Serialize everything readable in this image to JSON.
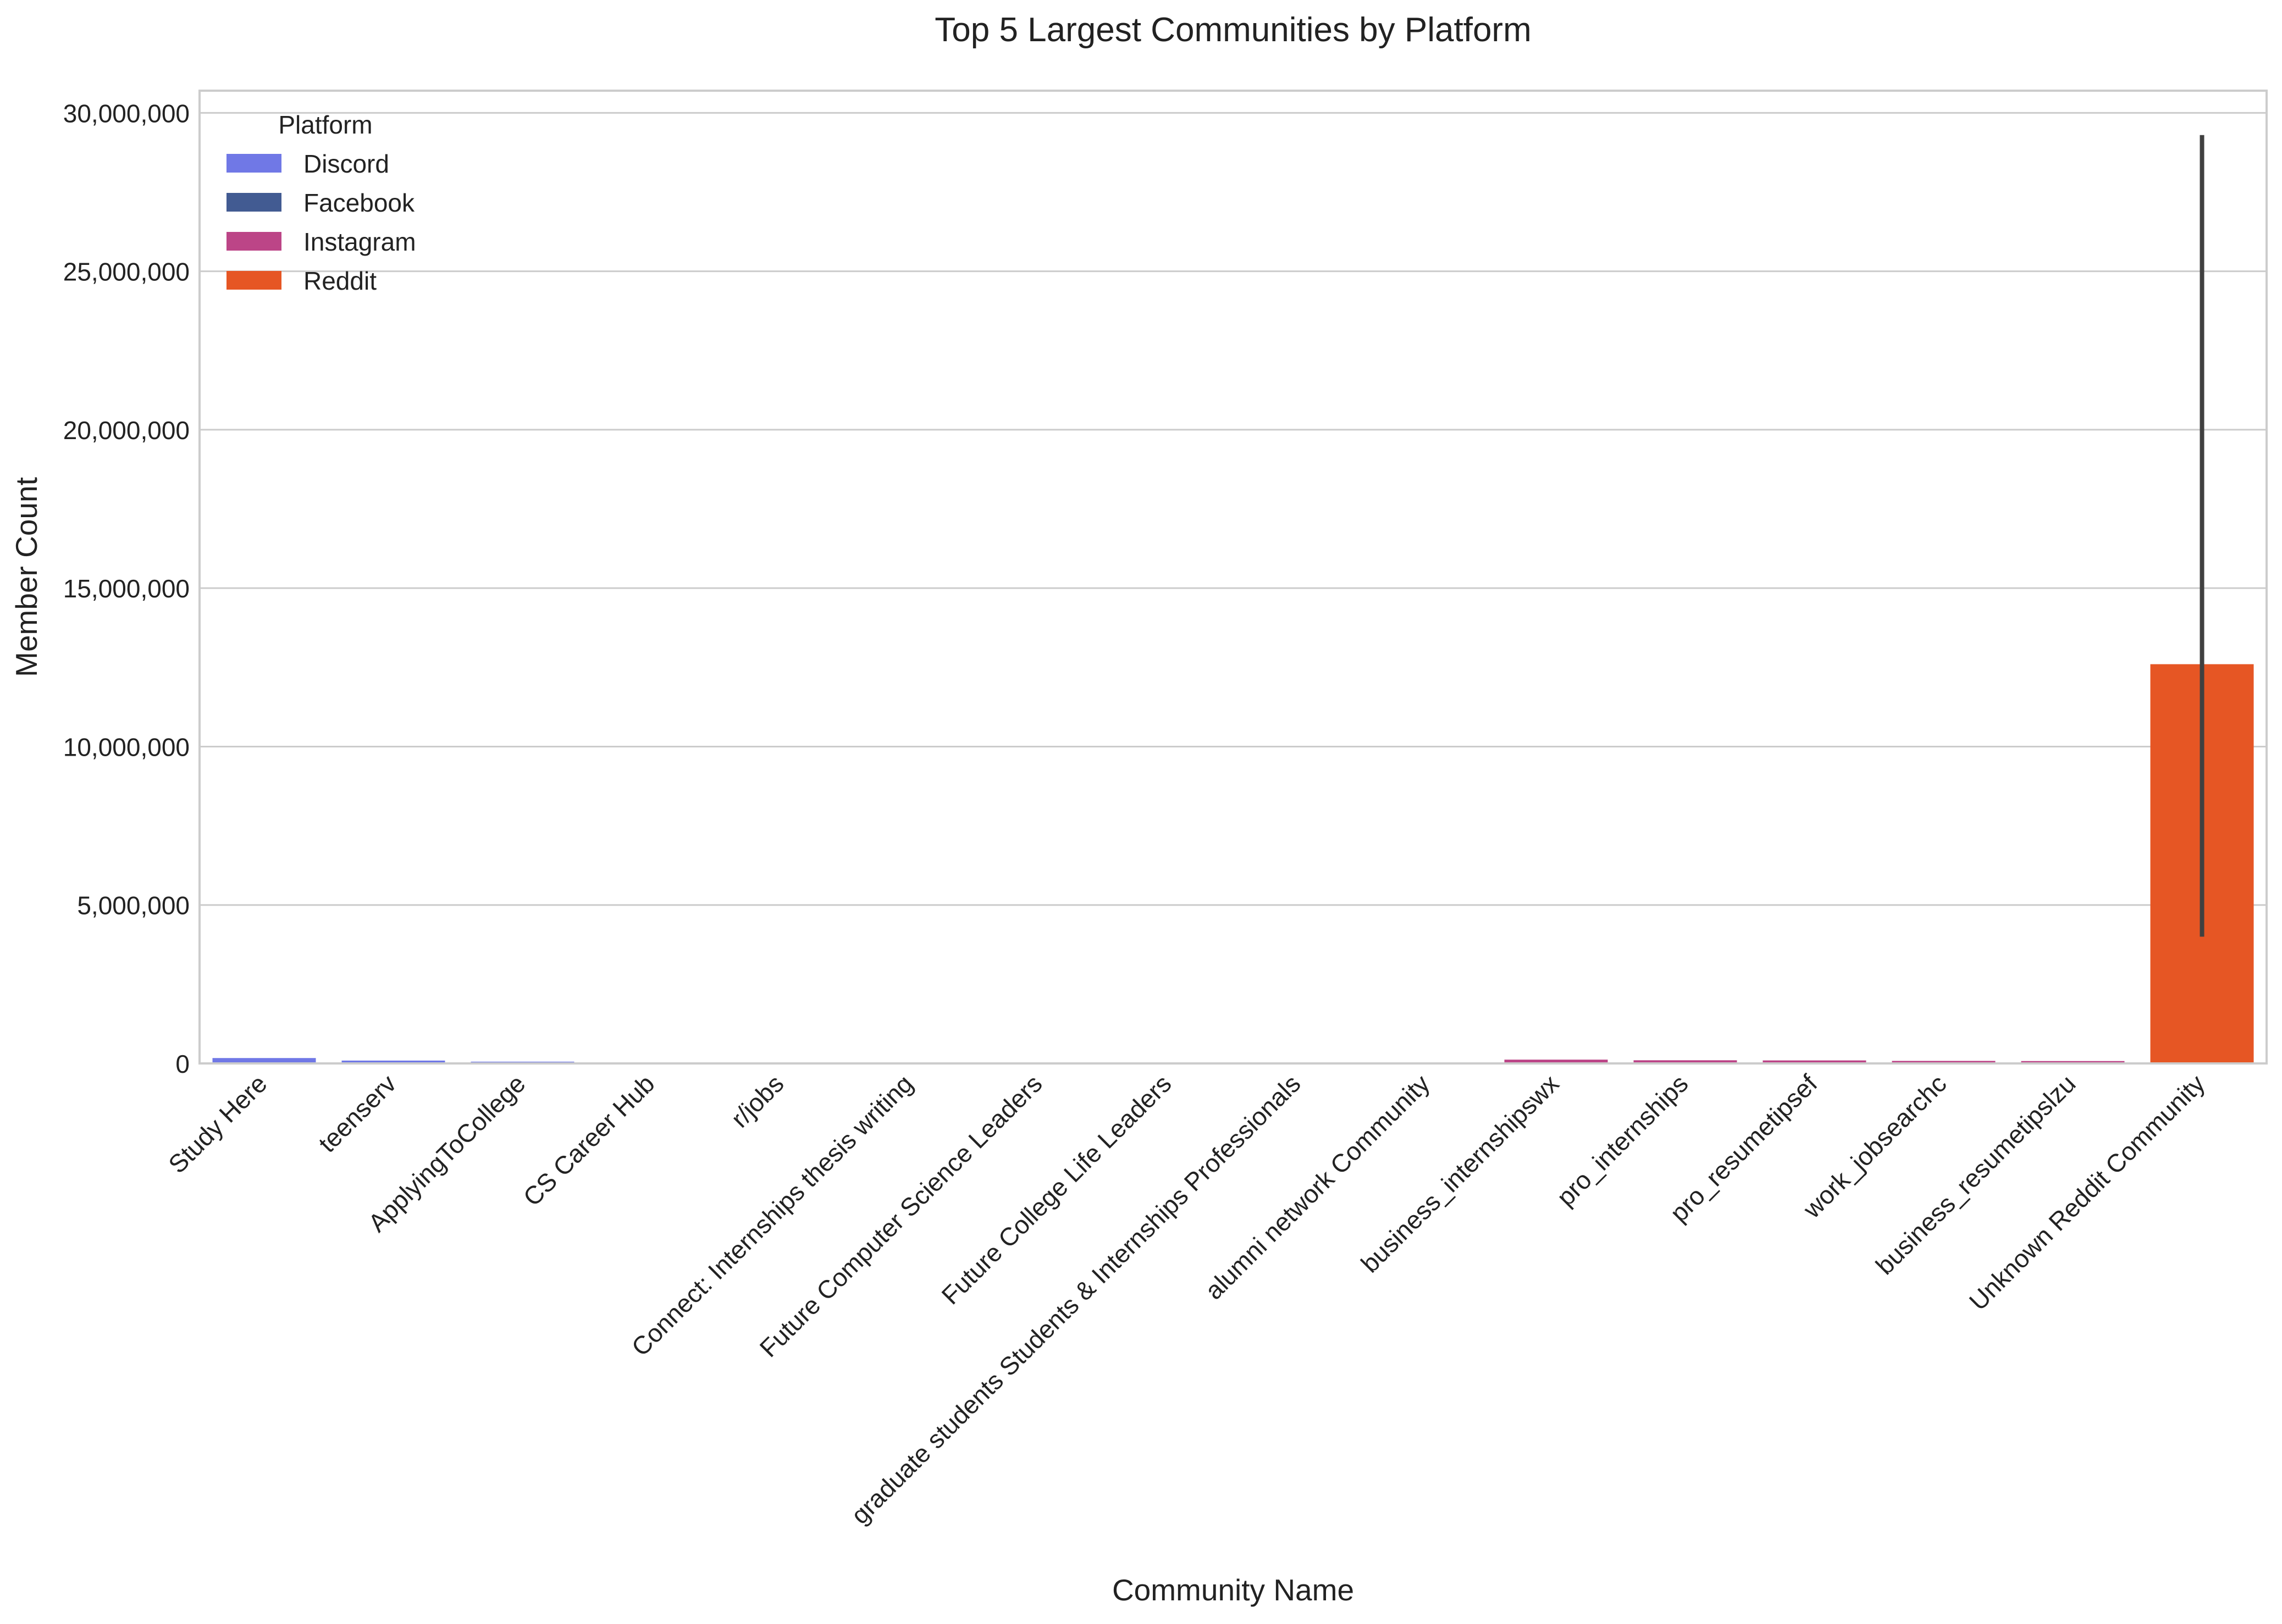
{
  "chart_data": {
    "type": "bar",
    "title": "Top 5 Largest Communities by Platform",
    "xlabel": "Community Name",
    "ylabel": "Member Count",
    "ylim": [
      0,
      30700000
    ],
    "yticks": [
      0,
      5000000,
      10000000,
      15000000,
      20000000,
      25000000,
      30000000
    ],
    "ytick_labels": [
      "0",
      "5,000,000",
      "10,000,000",
      "15,000,000",
      "20,000,000",
      "25,000,000",
      "30,000,000"
    ],
    "grid": true,
    "legend": {
      "title": "Platform",
      "position": "top-left"
    },
    "categories": [
      "Study Here",
      "teenserv",
      "ApplyingToCollege",
      "CS Career Hub",
      "r/jobs",
      "Connect: Internships thesis writing",
      "Future Computer Science Leaders",
      "Future College Life Leaders",
      "graduate students Students & Internships Professionals",
      "alumni network Community",
      "business_internshipswx",
      "pro_internships",
      "pro_resumetipsef",
      "work_jobsearchc",
      "business_resumetipslzu",
      "Unknown Reddit Community"
    ],
    "series": [
      {
        "name": "Discord",
        "color": "#7078e6",
        "values": [
          170000,
          90000,
          55000,
          10000,
          4000,
          null,
          null,
          null,
          null,
          null,
          null,
          null,
          null,
          null,
          null,
          null
        ]
      },
      {
        "name": "Facebook",
        "color": "#425b92",
        "values": [
          null,
          null,
          null,
          null,
          null,
          4000,
          3000,
          3000,
          2500,
          2000,
          null,
          null,
          null,
          null,
          null,
          null
        ]
      },
      {
        "name": "Instagram",
        "color": "#bc4587",
        "values": [
          null,
          null,
          null,
          null,
          null,
          null,
          null,
          null,
          null,
          null,
          120000,
          100000,
          95000,
          80000,
          75000,
          null
        ]
      },
      {
        "name": "Reddit",
        "color": "#e65624",
        "values": [
          null,
          null,
          null,
          null,
          null,
          null,
          null,
          null,
          null,
          null,
          null,
          null,
          null,
          null,
          null,
          12600000
        ],
        "error_bars": [
          null,
          null,
          null,
          null,
          null,
          null,
          null,
          null,
          null,
          null,
          null,
          null,
          null,
          null,
          null,
          [
            4000000,
            29300000
          ]
        ]
      }
    ],
    "colors": {
      "grid": "#cccccc",
      "axes_edge": "#cccccc",
      "error_bar": "#404040",
      "background": "#ffffff"
    }
  }
}
